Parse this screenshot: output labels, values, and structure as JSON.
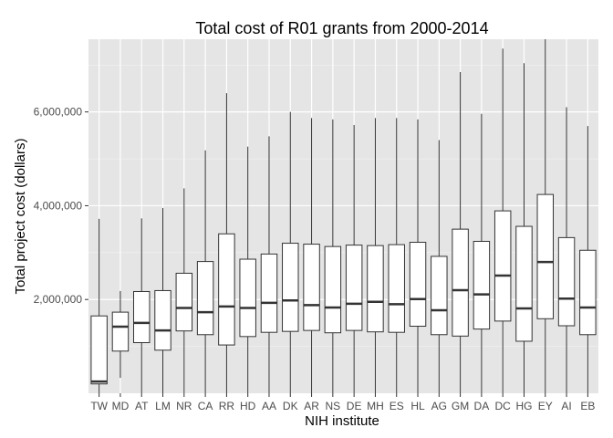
{
  "chart_data": {
    "type": "boxplot",
    "title": "Total cost of R01 grants from 2000-2014",
    "xlabel": "NIH institute",
    "ylabel": "Total project cost (dollars)",
    "y_ticks": [
      2000000,
      4000000,
      6000000
    ],
    "y_tick_labels": [
      "2,000,000",
      "4,000,000",
      "6,000,000"
    ],
    "ylim": [
      0,
      7550000
    ],
    "grid": true,
    "colors": {
      "panel": "#e5e5e5",
      "grid_major": "#ffffff",
      "grid_minor": "#f2f2f2",
      "box_fill": "#ffffff",
      "box_line": "#333333"
    },
    "categories": [
      "TW",
      "MD",
      "AT",
      "LM",
      "NR",
      "CA",
      "RR",
      "HD",
      "AA",
      "DK",
      "AR",
      "NS",
      "DE",
      "MH",
      "ES",
      "HL",
      "AG",
      "GM",
      "DA",
      "DC",
      "HG",
      "EY",
      "AI",
      "EB"
    ],
    "boxes": [
      {
        "min": 0,
        "q1": 200000,
        "median": 250000,
        "q3": 1650000,
        "max": 3720000
      },
      {
        "min": 330000,
        "q1": 900000,
        "median": 1420000,
        "q3": 1730000,
        "max": 2180000
      },
      {
        "min": 0,
        "q1": 1080000,
        "median": 1500000,
        "q3": 2170000,
        "max": 3730000
      },
      {
        "min": 0,
        "q1": 920000,
        "median": 1340000,
        "q3": 2190000,
        "max": 3950000
      },
      {
        "min": 0,
        "q1": 1330000,
        "median": 1820000,
        "q3": 2560000,
        "max": 4370000
      },
      {
        "min": 0,
        "q1": 1250000,
        "median": 1730000,
        "q3": 2810000,
        "max": 5180000
      },
      {
        "min": 0,
        "q1": 1030000,
        "median": 1850000,
        "q3": 3400000,
        "max": 6400000
      },
      {
        "min": 0,
        "q1": 1210000,
        "median": 1820000,
        "q3": 2860000,
        "max": 5260000
      },
      {
        "min": 0,
        "q1": 1300000,
        "median": 1930000,
        "q3": 2970000,
        "max": 5480000
      },
      {
        "min": 0,
        "q1": 1320000,
        "median": 1980000,
        "q3": 3200000,
        "max": 6000000
      },
      {
        "min": 0,
        "q1": 1340000,
        "median": 1880000,
        "q3": 3180000,
        "max": 5870000
      },
      {
        "min": 0,
        "q1": 1290000,
        "median": 1830000,
        "q3": 3130000,
        "max": 5840000
      },
      {
        "min": 0,
        "q1": 1340000,
        "median": 1910000,
        "q3": 3160000,
        "max": 5720000
      },
      {
        "min": 0,
        "q1": 1310000,
        "median": 1950000,
        "q3": 3150000,
        "max": 5870000
      },
      {
        "min": 0,
        "q1": 1300000,
        "median": 1900000,
        "q3": 3170000,
        "max": 5870000
      },
      {
        "min": 0,
        "q1": 1430000,
        "median": 2010000,
        "q3": 3220000,
        "max": 5840000
      },
      {
        "min": 0,
        "q1": 1250000,
        "median": 1770000,
        "q3": 2920000,
        "max": 5400000
      },
      {
        "min": 0,
        "q1": 1220000,
        "median": 2200000,
        "q3": 3500000,
        "max": 6850000
      },
      {
        "min": 0,
        "q1": 1370000,
        "median": 2110000,
        "q3": 3240000,
        "max": 5960000
      },
      {
        "min": 0,
        "q1": 1540000,
        "median": 2510000,
        "q3": 3890000,
        "max": 7350000
      },
      {
        "min": 0,
        "q1": 1110000,
        "median": 1810000,
        "q3": 3560000,
        "max": 7040000
      },
      {
        "min": 0,
        "q1": 1590000,
        "median": 2800000,
        "q3": 4240000,
        "max": 7550000
      },
      {
        "min": 0,
        "q1": 1440000,
        "median": 2020000,
        "q3": 3320000,
        "max": 6100000
      },
      {
        "min": 0,
        "q1": 1250000,
        "median": 1830000,
        "q3": 3050000,
        "max": 5700000
      }
    ]
  }
}
